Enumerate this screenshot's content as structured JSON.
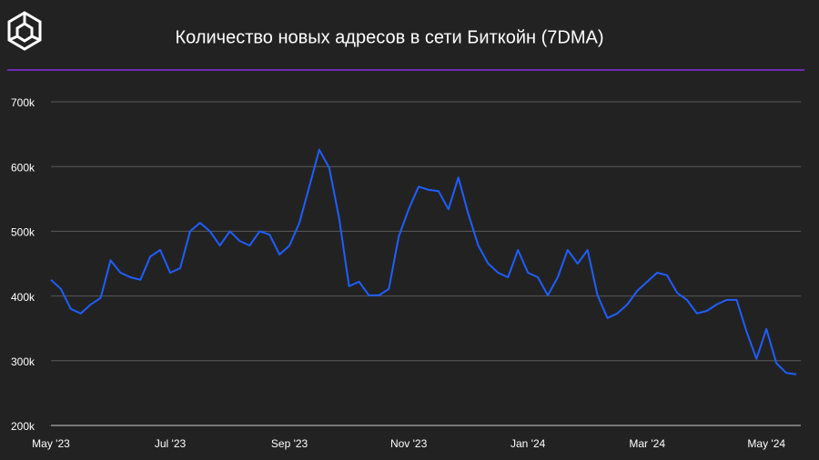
{
  "chart_data": {
    "type": "line",
    "title": "Количество новых адресов в сети Биткойн (7DMA)",
    "categories": [
      "May '23",
      null,
      null,
      null,
      null,
      null,
      null,
      null,
      null,
      null,
      null,
      null,
      "Jul '23",
      null,
      null,
      null,
      null,
      null,
      null,
      null,
      null,
      null,
      null,
      null,
      "Sep '23",
      null,
      null,
      null,
      null,
      null,
      null,
      null,
      null,
      null,
      null,
      null,
      "Nov '23",
      null,
      null,
      null,
      null,
      null,
      null,
      null,
      null,
      null,
      null,
      null,
      "Jan '24",
      null,
      null,
      null,
      null,
      null,
      null,
      null,
      null,
      null,
      null,
      null,
      "Mar '24",
      null,
      null,
      null,
      null,
      null,
      null,
      null,
      null,
      null,
      null,
      null,
      "May '24",
      null,
      null,
      null
    ],
    "series": [
      {
        "color": "#1f5eff",
        "values": [
          425000,
          411000,
          380000,
          373000,
          387000,
          397000,
          455000,
          436000,
          429000,
          425000,
          461000,
          471000,
          436000,
          443000,
          500000,
          513000,
          500000,
          478000,
          500000,
          485000,
          478000,
          500000,
          495000,
          464000,
          478000,
          513000,
          569000,
          626000,
          598000,
          520000,
          415000,
          422000,
          401000,
          401000,
          411000,
          492000,
          534000,
          569000,
          564000,
          562000,
          534000,
          583000,
          527000,
          478000,
          450000,
          436000,
          429000,
          471000,
          436000,
          429000,
          401000,
          429000,
          471000,
          450000,
          471000,
          401000,
          366000,
          373000,
          387000,
          408000,
          422000,
          436000,
          432000,
          405000,
          394000,
          373000,
          377000,
          387000,
          394000,
          394000,
          345000,
          303000,
          349000,
          296000,
          281000,
          279000
        ]
      }
    ],
    "ylim": [
      200000,
      700000
    ],
    "yticks": [
      {
        "value": 200000,
        "label": "200k"
      },
      {
        "value": 300000,
        "label": "300k"
      },
      {
        "value": 400000,
        "label": "400k"
      },
      {
        "value": 500000,
        "label": "500k"
      },
      {
        "value": 600000,
        "label": "600k"
      },
      {
        "value": 700000,
        "label": "700k"
      }
    ],
    "grid": true
  }
}
